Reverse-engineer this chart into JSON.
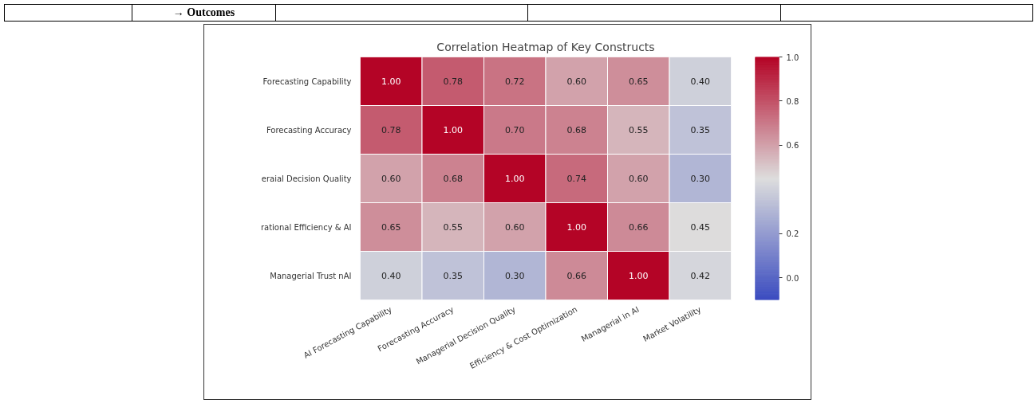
{
  "chart_data": {
    "type": "heatmap",
    "title": "Correlation Heatmap of Key Constructs",
    "annotations": [
      "→ Outcomes"
    ],
    "categories": [
      "AI Forecasting Capability",
      "Forecasting Accuracy",
      "Managerial Decision Quality",
      "Efficiency & Cost Optimization",
      "Managerial in AI",
      "Market Volatility"
    ],
    "y_categories": [
      "Forecasting Capability",
      "Forecasting Accuracy",
      "eraial Decision Quality",
      "rational Efficiency & AI",
      "Managerial Trust nAI"
    ],
    "cells": [
      [
        1.0,
        0.78,
        0.72,
        0.6,
        0.65,
        0.4
      ],
      [
        0.78,
        1.0,
        0.7,
        0.68,
        0.55,
        0.35
      ],
      [
        0.6,
        0.68,
        1.0,
        0.74,
        0.6,
        0.3
      ],
      [
        0.65,
        0.55,
        0.6,
        1.0,
        0.66,
        0.45
      ],
      [
        0.4,
        0.35,
        0.3,
        0.66,
        1.0,
        0.42
      ]
    ],
    "cell_labels": [
      [
        "1.00",
        "0.78",
        "0.72",
        "0.60",
        "0.65",
        "0.40"
      ],
      [
        "0.78",
        "1.00",
        "0.70",
        "0.68",
        "0.55",
        "0.35"
      ],
      [
        "0.60",
        "0.68",
        "1.00",
        "0.74",
        "0.60",
        "0.30"
      ],
      [
        "0.65",
        "0.55",
        "0.60",
        "1.00",
        "0.66",
        "0.45"
      ],
      [
        "0.40",
        "0.35",
        "0.30",
        "0.66",
        "1.00",
        "0.42"
      ]
    ],
    "data_labels": true,
    "clim": [
      -0.1,
      1.0
    ],
    "cticks": [
      {
        "value": 1.0,
        "label": "1.0"
      },
      {
        "value": 0.8,
        "label": "0.8"
      },
      {
        "value": 0.6,
        "label": "0.6"
      },
      {
        "value": 0.2,
        "label": "0.2"
      },
      {
        "value": 0.0,
        "label": "0.0"
      }
    ]
  }
}
